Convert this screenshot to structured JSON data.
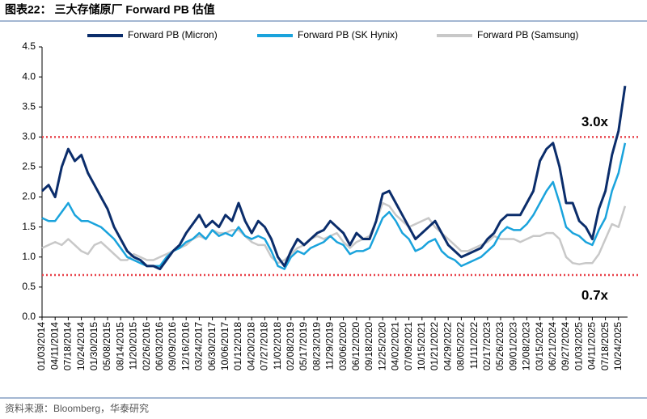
{
  "chart_data": {
    "type": "line",
    "title": "图表22： 三大存储原厂 Forward PB 估值",
    "source": "资料来源：Bloomberg，华泰研究",
    "categories": [
      "01/03/2014",
      null,
      "04/11/2014",
      null,
      "07/18/2014",
      null,
      "10/24/2014",
      null,
      "01/30/2015",
      null,
      "05/08/2015",
      null,
      "08/14/2015",
      null,
      "11/20/2015",
      null,
      "02/26/2016",
      null,
      "06/03/2016",
      null,
      "09/09/2016",
      null,
      "12/16/2016",
      null,
      "03/24/2017",
      null,
      "06/30/2017",
      null,
      "10/06/2017",
      null,
      "01/12/2018",
      null,
      "04/20/2018",
      null,
      "07/27/2018",
      null,
      "11/02/2018",
      null,
      "02/08/2019",
      null,
      "05/17/2019",
      null,
      "08/23/2019",
      null,
      "11/29/2019",
      null,
      "03/06/2020",
      null,
      "06/12/2020",
      null,
      "09/18/2020",
      null,
      "12/25/2020",
      null,
      "04/02/2021",
      null,
      "07/09/2021",
      null,
      "10/15/2021",
      null,
      "01/21/2022",
      null,
      "04/29/2022",
      null,
      "08/05/2022",
      null,
      "11/11/2022",
      null,
      "02/17/2023",
      null,
      "05/26/2023",
      null,
      "09/01/2023",
      null,
      "12/08/2023",
      null,
      "03/15/2024",
      null,
      "06/21/2024",
      null,
      "09/27/2024",
      null,
      "01/03/2025",
      null,
      "04/11/2025",
      null,
      "07/18/2025",
      null,
      "10/24/2025",
      null
    ],
    "series": [
      {
        "name": "Forward PB (Micron)",
        "color": "#0b2d6b",
        "width": 3,
        "values": [
          2.1,
          2.2,
          2.0,
          2.5,
          2.8,
          2.6,
          2.7,
          2.4,
          2.2,
          2.0,
          1.8,
          1.5,
          1.3,
          1.1,
          1.0,
          0.95,
          0.85,
          0.85,
          0.8,
          0.95,
          1.1,
          1.2,
          1.4,
          1.55,
          1.7,
          1.5,
          1.6,
          1.5,
          1.7,
          1.6,
          1.9,
          1.6,
          1.4,
          1.6,
          1.5,
          1.3,
          1.0,
          0.85,
          1.1,
          1.3,
          1.2,
          1.3,
          1.4,
          1.45,
          1.6,
          1.5,
          1.4,
          1.2,
          1.4,
          1.3,
          1.3,
          1.6,
          2.05,
          2.1,
          1.9,
          1.7,
          1.5,
          1.3,
          1.4,
          1.5,
          1.6,
          1.4,
          1.2,
          1.1,
          1.0,
          1.05,
          1.1,
          1.15,
          1.3,
          1.4,
          1.6,
          1.7,
          1.7,
          1.7,
          1.9,
          2.1,
          2.6,
          2.8,
          2.9,
          2.5,
          1.9,
          1.9,
          1.6,
          1.5,
          1.3,
          1.8,
          2.1,
          2.7,
          3.1,
          3.85
        ]
      },
      {
        "name": "Forward PB (SK Hynix)",
        "color": "#1aa3dc",
        "width": 2.5,
        "values": [
          1.65,
          1.6,
          1.6,
          1.75,
          1.9,
          1.7,
          1.6,
          1.6,
          1.55,
          1.5,
          1.4,
          1.3,
          1.15,
          1.0,
          0.95,
          0.9,
          0.85,
          0.85,
          0.85,
          1.0,
          1.1,
          1.15,
          1.25,
          1.3,
          1.4,
          1.3,
          1.45,
          1.35,
          1.4,
          1.35,
          1.5,
          1.35,
          1.3,
          1.35,
          1.3,
          1.1,
          0.85,
          0.8,
          1.0,
          1.1,
          1.05,
          1.15,
          1.2,
          1.25,
          1.35,
          1.25,
          1.2,
          1.05,
          1.1,
          1.1,
          1.15,
          1.4,
          1.65,
          1.75,
          1.6,
          1.4,
          1.3,
          1.1,
          1.15,
          1.25,
          1.3,
          1.1,
          1.0,
          0.95,
          0.85,
          0.9,
          0.95,
          1.0,
          1.1,
          1.2,
          1.4,
          1.5,
          1.45,
          1.45,
          1.55,
          1.7,
          1.9,
          2.1,
          2.25,
          1.9,
          1.5,
          1.4,
          1.35,
          1.25,
          1.2,
          1.45,
          1.65,
          2.1,
          2.4,
          2.9
        ]
      },
      {
        "name": "Forward PB (Samsung)",
        "color": "#c8c8c8",
        "width": 2.5,
        "values": [
          1.15,
          1.2,
          1.25,
          1.2,
          1.3,
          1.2,
          1.1,
          1.05,
          1.2,
          1.25,
          1.15,
          1.05,
          0.95,
          0.95,
          1.05,
          1.0,
          0.95,
          0.95,
          1.0,
          1.05,
          1.1,
          1.15,
          1.2,
          1.3,
          1.35,
          1.3,
          1.45,
          1.4,
          1.4,
          1.45,
          1.45,
          1.35,
          1.25,
          1.2,
          1.2,
          1.0,
          0.9,
          0.95,
          1.05,
          1.15,
          1.2,
          1.3,
          1.35,
          1.3,
          1.35,
          1.4,
          1.25,
          1.15,
          1.25,
          1.3,
          1.35,
          1.6,
          1.9,
          1.85,
          1.7,
          1.6,
          1.5,
          1.55,
          1.6,
          1.65,
          1.5,
          1.4,
          1.3,
          1.2,
          1.1,
          1.1,
          1.15,
          1.2,
          1.25,
          1.35,
          1.3,
          1.3,
          1.3,
          1.25,
          1.3,
          1.35,
          1.35,
          1.4,
          1.4,
          1.3,
          1.0,
          0.9,
          0.88,
          0.9,
          0.9,
          1.05,
          1.3,
          1.55,
          1.5,
          1.85
        ]
      }
    ],
    "reference_lines": [
      {
        "value": 3.0,
        "label": "3.0x",
        "color": "#e8424a"
      },
      {
        "value": 0.7,
        "label": "0.7x",
        "color": "#e8424a"
      }
    ],
    "ylim": [
      0,
      4.5
    ],
    "yticks": [
      {
        "value": 0,
        "label": "0.0"
      },
      0.5,
      {
        "value": 1,
        "label": "1.0"
      },
      1.5,
      {
        "value": 2,
        "label": "2.0"
      },
      2.5,
      {
        "value": 3,
        "label": "3.0"
      },
      3.5,
      {
        "value": 4,
        "label": "4.0"
      },
      4.5
    ],
    "legend": "top"
  }
}
